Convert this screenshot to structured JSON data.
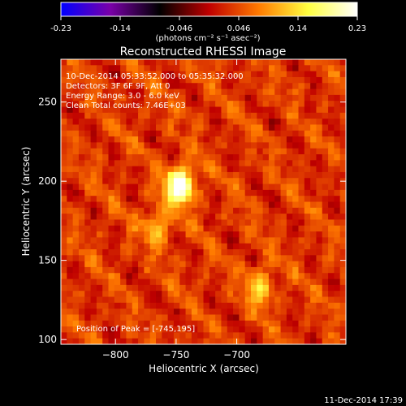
{
  "chart_data": {
    "type": "heatmap",
    "title": "Reconstructed RHESSI Image",
    "colorbar": {
      "ticks": [
        "-0.23",
        "-0.14",
        "-0.046",
        "0.046",
        "0.14",
        "0.23"
      ],
      "range": [
        -0.23,
        0.23
      ],
      "units": "(photons cm⁻² s⁻¹ asec⁻²)",
      "colors": [
        "#0000ff",
        "#7a00a8",
        "#000000",
        "#c00000",
        "#ff7a00",
        "#ffff40",
        "#ffffff"
      ]
    },
    "xlabel": "Heliocentric X (arcsec)",
    "ylabel": "Heliocentric Y (arcsec)",
    "xlim": [
      -845,
      -610
    ],
    "ylim": [
      97,
      277
    ],
    "xticks": [
      -800,
      -750,
      -700
    ],
    "yticks": [
      100,
      150,
      200,
      250
    ],
    "annotations": [
      "10-Dec-2014 05:33:52.000 to 05:35:32.000",
      "Detectors: 3F 6F 9F, Att 0",
      "Energy Range: 3.0 - 6.0 keV",
      "Clean     Total counts: 7.46E+03"
    ],
    "peak_label": "Position of Peak = [-745,195]",
    "peak": {
      "x": -745,
      "y": 195
    },
    "sources": [
      {
        "x": -747,
        "y": 197,
        "amp": 0.23
      },
      {
        "x": -765,
        "y": 171,
        "amp": 0.09
      },
      {
        "x": -680,
        "y": 133,
        "amp": 0.1
      }
    ]
  },
  "footer": {
    "timestamp": "11-Dec-2014 17:39"
  }
}
